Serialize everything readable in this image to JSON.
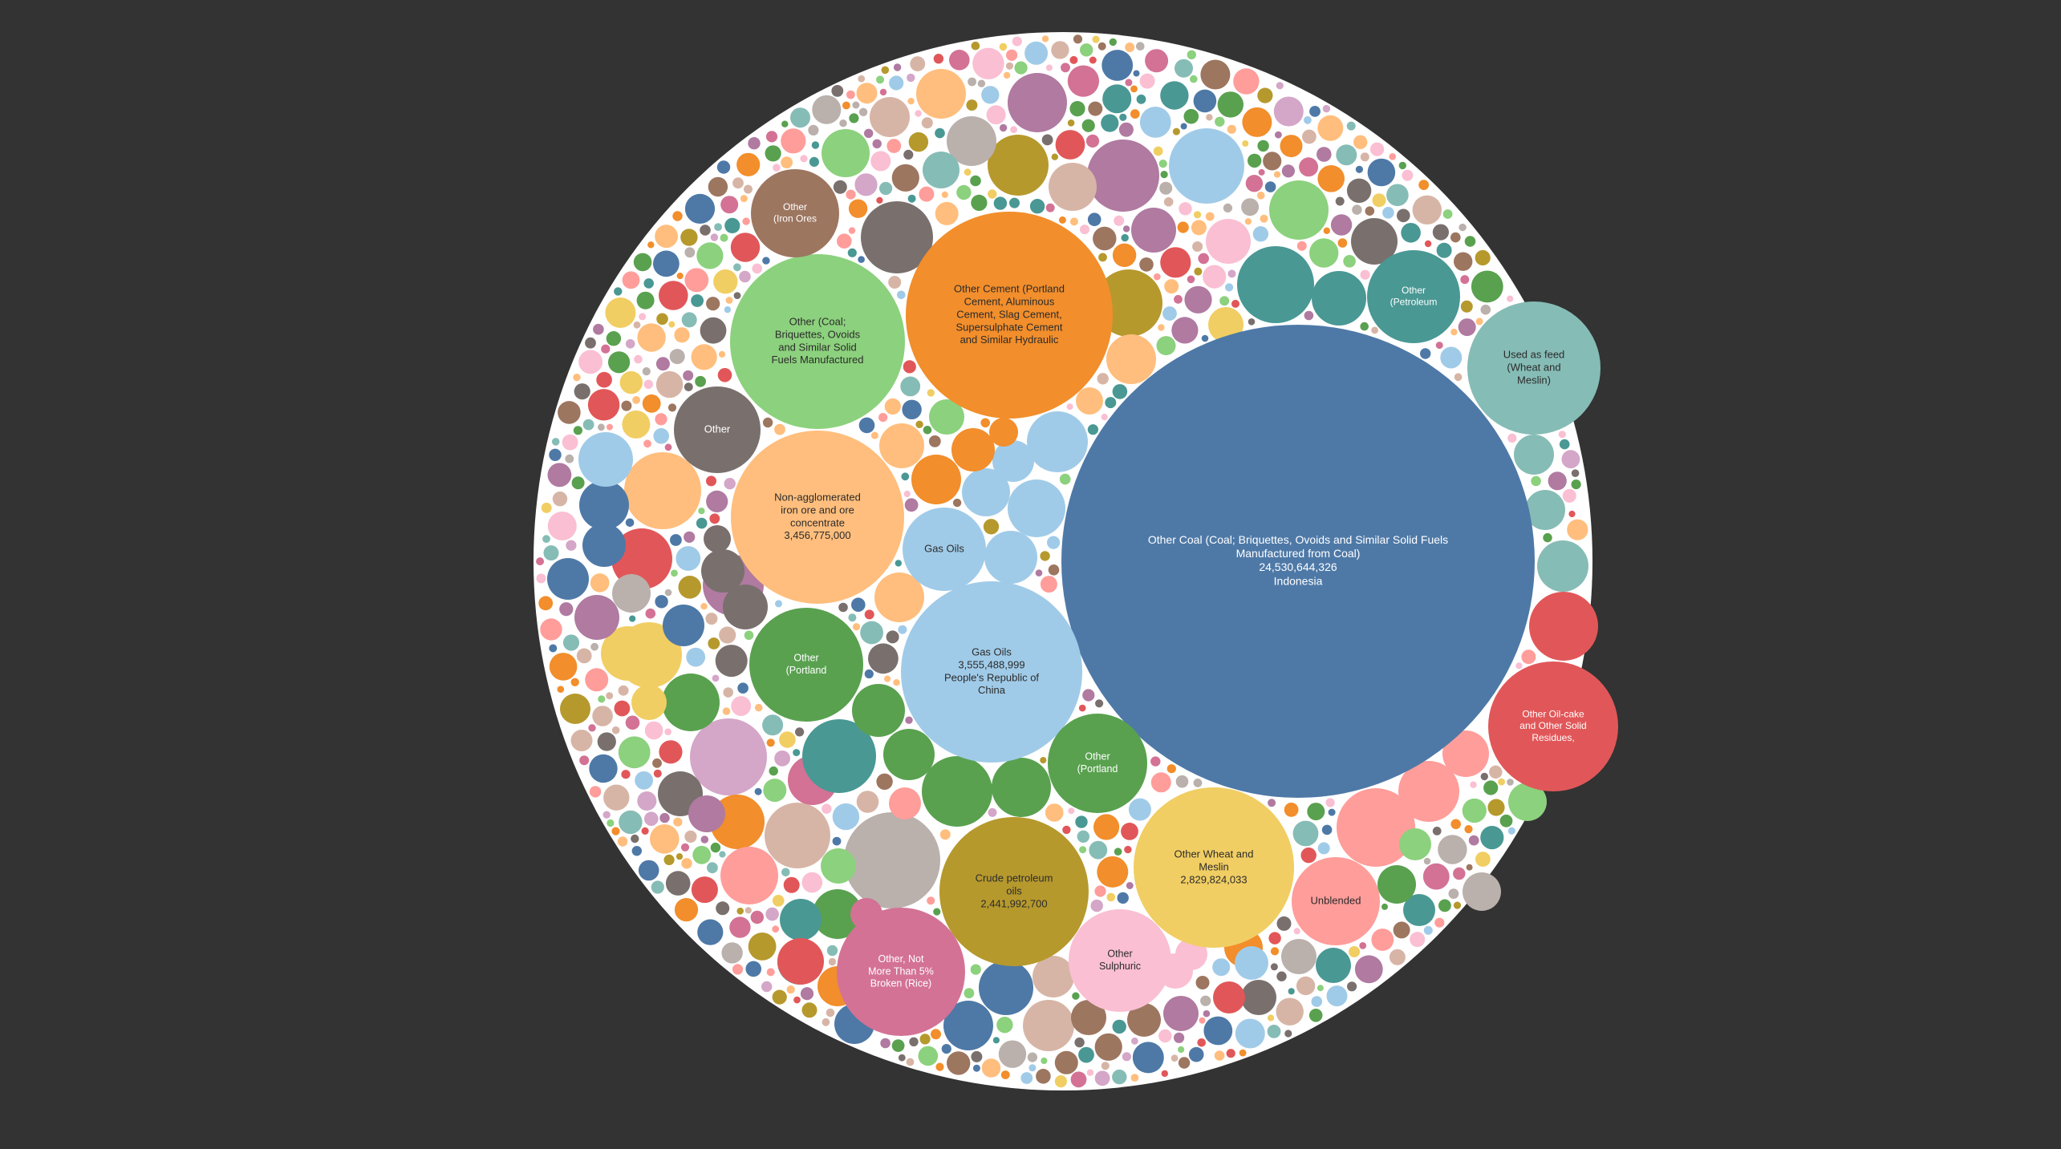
{
  "chart_data": {
    "type": "bubble",
    "title": "",
    "legend": "none",
    "colors": {
      "background": "#333333",
      "pack": "#ffffff",
      "blue": "#4e79a7",
      "orange": "#f28e2b",
      "light_green": "#8cd17d",
      "light_orange": "#ffbe7d",
      "light_blue": "#a0cbe8",
      "green": "#59a14f",
      "olive": "#b6992d",
      "yellow": "#f1ce63",
      "pink_dark": "#d37295",
      "light_pink": "#fabfd2",
      "red": "#e15759",
      "salmon": "#ff9d9a",
      "teal_gray": "#86bcb6",
      "teal": "#499894",
      "brown": "#9d7660",
      "warm_gray": "#79706e",
      "tan": "#d7b5a6",
      "light_gray": "#bab0ac",
      "purple": "#b07aa1",
      "lilac": "#d4a6c8"
    },
    "bubbles": [
      {
        "label": [
          "Other Coal (Coal; Briquettes, Ovoids and Similar Solid Fuels",
          "Manufactured from Coal)",
          "24,530,644,326",
          "Indonesia"
        ],
        "value": 24530644326,
        "color": "blue",
        "text_color": "light"
      },
      {
        "label": [
          "Gas Oils",
          "3,555,488,999",
          "People's Republic of",
          "China"
        ],
        "value": 3555488999,
        "color": "light_blue",
        "text_color": "dark"
      },
      {
        "label": [
          "Non-agglomerated",
          "iron ore and ore",
          "concentrate",
          "3,456,775,000"
        ],
        "value": 3456775000,
        "color": "light_orange",
        "text_color": "dark"
      },
      {
        "label": [
          "Other Wheat and",
          "Meslin",
          "2,829,824,033"
        ],
        "value": 2829824033,
        "color": "yellow",
        "text_color": "dark"
      },
      {
        "label": [
          "Crude petroleum",
          "oils",
          "2,441,992,700"
        ],
        "value": 2441992700,
        "color": "olive",
        "text_color": "dark"
      },
      {
        "label": [
          "Other Cement (Portland",
          "Cement, Aluminous",
          "Cement, Slag Cement,",
          "Supersulphate Cement",
          "and Similar Hydraulic"
        ],
        "color": "orange",
        "text_color": "dark"
      },
      {
        "label": [
          "Other (Coal;",
          "Briquettes, Ovoids",
          "and Similar Solid",
          "Fuels Manufactured"
        ],
        "color": "light_green",
        "text_color": "dark"
      },
      {
        "label": [
          "Used as feed",
          "(Wheat and",
          "Meslin)"
        ],
        "color": "teal_gray",
        "text_color": "dark"
      },
      {
        "label": [
          "Other Oil-cake",
          "and Other Solid",
          "Residues,"
        ],
        "color": "red",
        "text_color": "light"
      },
      {
        "label": [
          "Other, Not",
          "More Than 5%",
          "Broken (Rice)"
        ],
        "color": "pink_dark",
        "text_color": "light"
      },
      {
        "label": [
          "Other",
          "(Iron Ores"
        ],
        "color": "brown",
        "text_color": "light"
      },
      {
        "label": [
          "Other",
          "(Petroleum"
        ],
        "color": "teal",
        "text_color": "light"
      },
      {
        "label": [
          "Other"
        ],
        "color": "warm_gray",
        "text_color": "light"
      },
      {
        "label": [
          "Other",
          "(Portland"
        ],
        "color": "green",
        "text_color": "light"
      },
      {
        "label": [
          "Other",
          "(Portland"
        ],
        "color": "green",
        "text_color": "light"
      },
      {
        "label": [
          "Other",
          "Sulphuric"
        ],
        "color": "light_pink",
        "text_color": "dark"
      },
      {
        "label": [
          "Unblended"
        ],
        "color": "salmon",
        "text_color": "dark"
      },
      {
        "label": [
          "Gas Oils"
        ],
        "color": "light_blue",
        "text_color": "dark"
      }
    ]
  }
}
